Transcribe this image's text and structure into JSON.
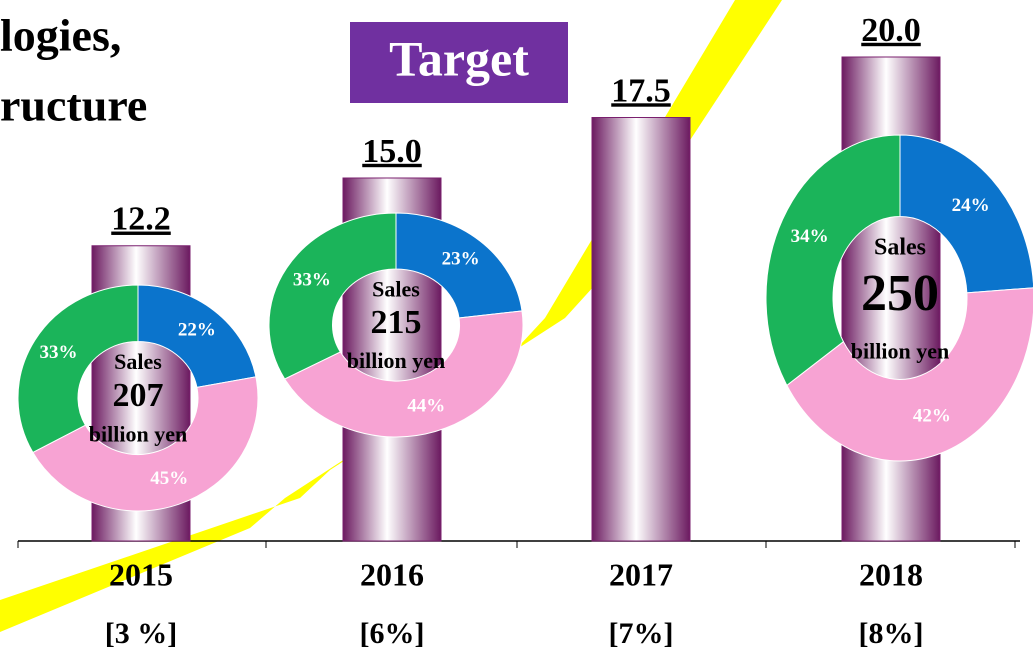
{
  "title_lines": [
    "logies,",
    "ructure"
  ],
  "target_label": "Target",
  "chart_data": [
    {
      "type": "bar",
      "categories": [
        "2015",
        "2016",
        "2017",
        "2018"
      ],
      "values": [
        12.2,
        15,
        17.5,
        20
      ],
      "value_labels": [
        "12.2",
        "15.0",
        "17.5",
        "20.0"
      ],
      "category_notes": [
        "[3 %]",
        "[6%]",
        "[7%]",
        "[8%]"
      ],
      "color": "#7a1f6e"
    },
    {
      "type": "donut",
      "category": "2015",
      "values": [
        22,
        45,
        33
      ],
      "value_labels": [
        "22%",
        "45%",
        "33%"
      ],
      "colors": [
        "#0b74cc",
        "#f7a3d3",
        "#1bb45a"
      ],
      "center_label": "Sales",
      "center_value": 207,
      "center_unit": "billion yen"
    },
    {
      "type": "donut",
      "category": "2016",
      "values": [
        23,
        44,
        33
      ],
      "value_labels": [
        "23%",
        "44%",
        "33%"
      ],
      "colors": [
        "#0b74cc",
        "#f7a3d3",
        "#1bb45a"
      ],
      "center_label": "Sales",
      "center_value": 215,
      "center_unit": "billion yen"
    },
    {
      "type": "donut",
      "category": "2018",
      "values": [
        24,
        42,
        34
      ],
      "value_labels": [
        "24%",
        "42%",
        "34%"
      ],
      "colors": [
        "#0b74cc",
        "#f7a3d3",
        "#1bb45a"
      ],
      "center_label": "Sales",
      "center_value": 250,
      "center_unit": "billion yen"
    }
  ]
}
